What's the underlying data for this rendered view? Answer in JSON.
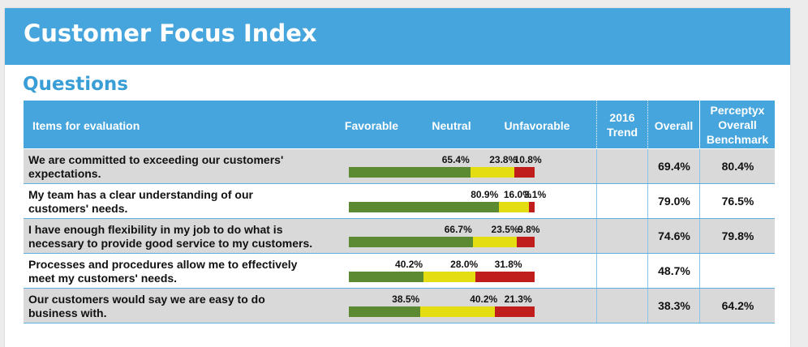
{
  "header": {
    "title": "Customer Focus Index"
  },
  "section": {
    "title": "Questions"
  },
  "table": {
    "columns": {
      "items": "Items for evaluation",
      "favorable": "Favorable",
      "neutral": "Neutral",
      "unfavorable": "Unfavorable",
      "trend_line1": "2016",
      "trend_line2": "Trend",
      "overall": "Overall",
      "benchmark_line1": "Perceptyx",
      "benchmark_line2": "Overall",
      "benchmark_line3": "Benchmark"
    },
    "colors": {
      "favorable": "#5b8a32",
      "neutral": "#e4dd12",
      "unfavorable": "#c01d1d",
      "header": "#45a5dc"
    },
    "rows": [
      {
        "question_line1": "We are committed to exceeding our customers'",
        "question_line2": "expectations.",
        "favorable": 65.4,
        "neutral": 23.8,
        "unfavorable": 10.8,
        "favorable_label": "65.4%",
        "neutral_label": "23.8%",
        "unfavorable_label": "10.8%",
        "trend": "",
        "overall": "69.4%",
        "benchmark": "80.4%"
      },
      {
        "question_line1": "My team has a clear understanding of our",
        "question_line2": "customers' needs.",
        "favorable": 80.9,
        "neutral": 16.0,
        "unfavorable": 3.1,
        "favorable_label": "80.9%",
        "neutral_label": "16.0%",
        "unfavorable_label": "3.1%",
        "trend": "",
        "overall": "79.0%",
        "benchmark": "76.5%"
      },
      {
        "question_line1": "I have enough flexibility in my job to do what is",
        "question_line2": "necessary to provide good service to my customers.",
        "favorable": 66.7,
        "neutral": 23.5,
        "unfavorable": 9.8,
        "favorable_label": "66.7%",
        "neutral_label": "23.5%",
        "unfavorable_label": "9.8%",
        "trend": "",
        "overall": "74.6%",
        "benchmark": "79.8%"
      },
      {
        "question_line1": "Processes and procedures allow me to effectively",
        "question_line2": "meet my customers' needs.",
        "favorable": 40.2,
        "neutral": 28.0,
        "unfavorable": 31.8,
        "favorable_label": "40.2%",
        "neutral_label": "28.0%",
        "unfavorable_label": "31.8%",
        "trend": "",
        "overall": "48.7%",
        "benchmark": ""
      },
      {
        "question_line1": "Our customers would say we are easy to do",
        "question_line2": "business with.",
        "favorable": 38.5,
        "neutral": 40.2,
        "unfavorable": 21.3,
        "favorable_label": "38.5%",
        "neutral_label": "40.2%",
        "unfavorable_label": "21.3%",
        "trend": "",
        "overall": "38.3%",
        "benchmark": "64.2%"
      }
    ]
  }
}
